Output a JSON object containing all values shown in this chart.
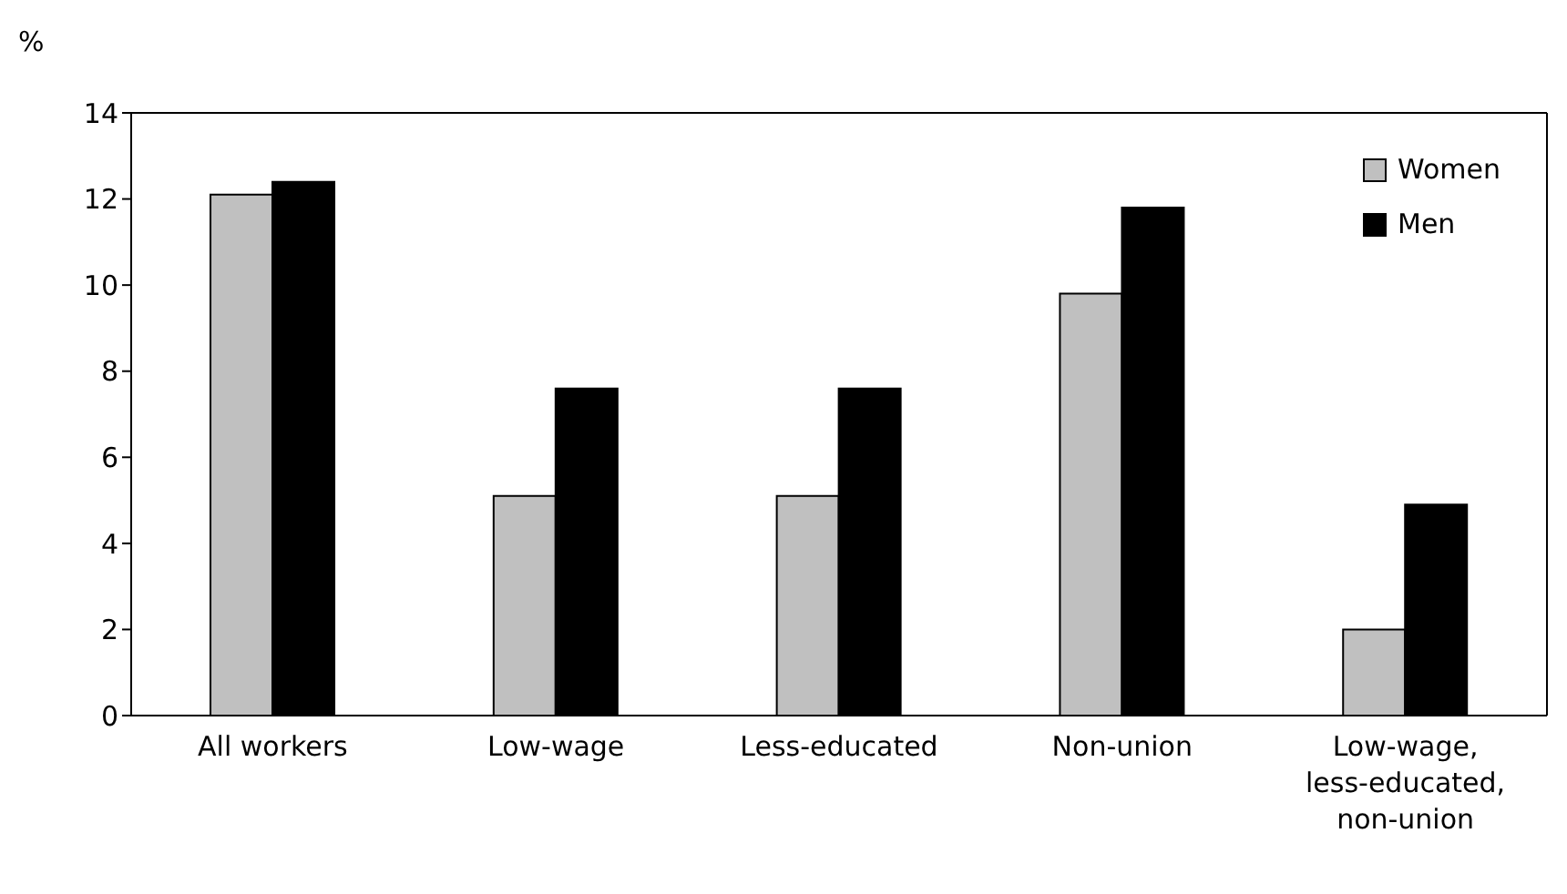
{
  "chart_data": {
    "type": "bar",
    "ylabel": "%",
    "categories": [
      "All workers",
      "Low-wage",
      "Less-educated",
      "Non-union",
      "Low-wage, less-educated, non-union"
    ],
    "series": [
      {
        "name": "Women",
        "color": "#c0c0c0",
        "values": [
          12.1,
          5.1,
          5.1,
          9.8,
          2.0
        ]
      },
      {
        "name": "Men",
        "color": "#000000",
        "values": [
          12.4,
          7.6,
          7.6,
          11.8,
          4.9
        ]
      }
    ],
    "ylim": [
      0,
      14
    ],
    "yticks": [
      0,
      2,
      4,
      6,
      8,
      10,
      12,
      14
    ],
    "legend": "top right"
  }
}
